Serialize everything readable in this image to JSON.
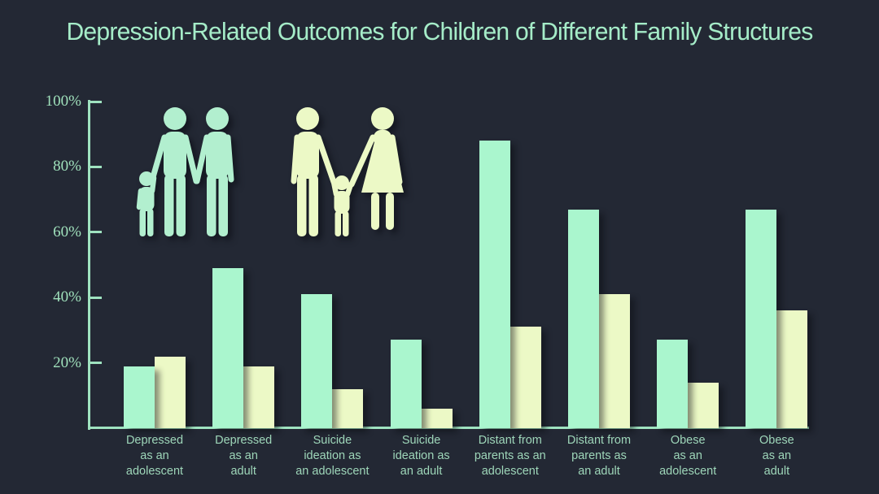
{
  "title": "Depression-Related Outcomes for Children of Different Family Structures",
  "colors": {
    "background": "#232834",
    "title_text": "#a5ecc8",
    "axis": "#9fe3c0",
    "y_tick_label_text": "#9fe0bb",
    "category_label_text": "#9ed6b9",
    "series_two_father": "#aaf6ce",
    "series_mother_father": "#ecf9c6"
  },
  "icons": [
    {
      "name": "two-father-family-icon",
      "depicts": "two men with a child holding hands",
      "color": "#b2efcf"
    },
    {
      "name": "mother-father-family-icon",
      "depicts": "man and woman with a child holding hands",
      "color": "#ecf9c6"
    }
  ],
  "chart_data": {
    "type": "bar",
    "title": "Depression-Related Outcomes for Children of Different Family Structures",
    "xlabel": "",
    "ylabel": "",
    "ylim": [
      0,
      100
    ],
    "grid": false,
    "legend_position": "pictogram icons above plot area",
    "yticks": [
      20,
      40,
      60,
      80,
      100
    ],
    "ytick_labels": [
      "20%",
      "40%",
      "60%",
      "80%",
      "100%"
    ],
    "categories": [
      {
        "label": "Depressed as an adolescent",
        "lines": [
          "Depressed",
          "as an",
          "adolescent"
        ]
      },
      {
        "label": "Depressed as an adult",
        "lines": [
          "Depressed",
          "as an",
          "adult"
        ]
      },
      {
        "label": "Suicide ideation as an adolescent",
        "lines": [
          "Suicide",
          "ideation as",
          "an adolescent"
        ]
      },
      {
        "label": "Suicide ideation as an adult",
        "lines": [
          "Suicide",
          "ideation as",
          "an adult"
        ]
      },
      {
        "label": "Distant from parents as an adolescent",
        "lines": [
          "Distant from",
          "parents as an",
          "adolescent"
        ]
      },
      {
        "label": "Distant from parents as an adult",
        "lines": [
          "Distant from",
          "parents as",
          "an adult"
        ]
      },
      {
        "label": "Obese as an adolescent",
        "lines": [
          "Obese",
          "as an",
          "adolescent"
        ]
      },
      {
        "label": "Obese as an adult",
        "lines": [
          "Obese",
          "as an",
          "adult"
        ]
      }
    ],
    "series": [
      {
        "key": "two_father_family",
        "name": "Two-father family (mint icon)",
        "color": "#aaf6ce",
        "values": [
          19,
          49,
          41,
          27,
          88,
          67,
          27,
          67
        ]
      },
      {
        "key": "mother_father_family",
        "name": "Mother-father family (cream icon)",
        "color": "#ecf9c6",
        "values": [
          22,
          19,
          12,
          6,
          31,
          41,
          14,
          36
        ]
      }
    ]
  }
}
